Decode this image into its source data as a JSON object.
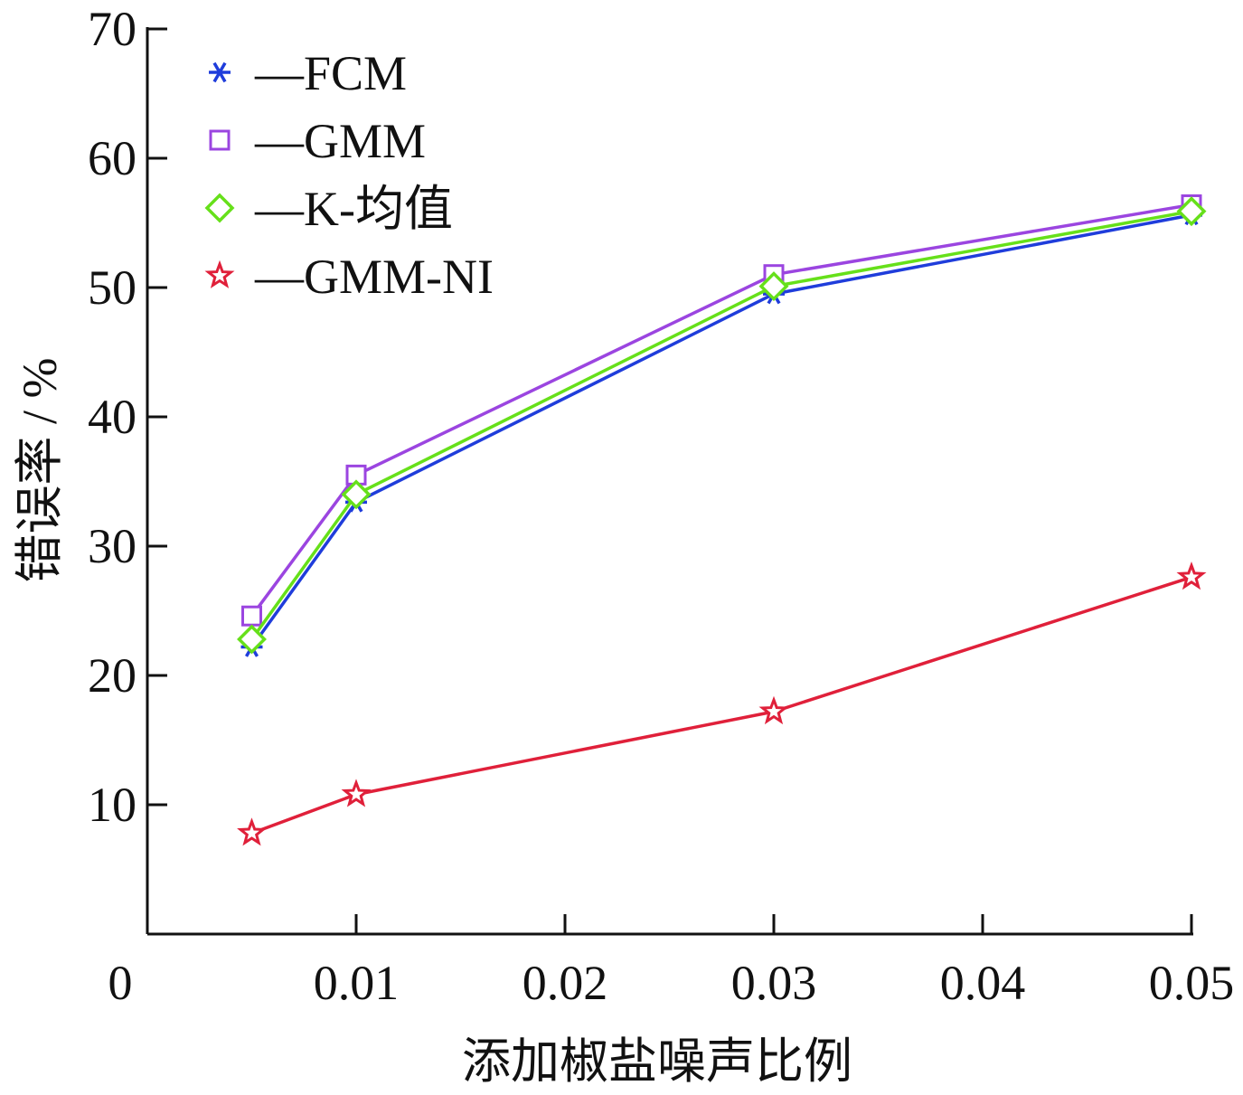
{
  "chart_data": {
    "type": "line",
    "xlabel": "添加椒盐噪声比例",
    "ylabel": "错误率 / %",
    "xlim": [
      0,
      0.05
    ],
    "ylim": [
      0,
      70
    ],
    "xticks": [
      0,
      0.01,
      0.02,
      0.03,
      0.04,
      0.05
    ],
    "xtick_labels": [
      "0",
      "0.01",
      "0.02",
      "0.03",
      "0.04",
      "0.05"
    ],
    "yticks": [
      10,
      20,
      30,
      40,
      50,
      60,
      70
    ],
    "ytick_labels": [
      "10",
      "20",
      "30",
      "40",
      "50",
      "60",
      "70"
    ],
    "grid": false,
    "legend_position": "top-left",
    "x": [
      0.005,
      0.01,
      0.03,
      0.05
    ],
    "series": [
      {
        "name": "FCM",
        "legend_label": "—FCM",
        "marker": "asterisk",
        "color": "#1f3ddb",
        "values": [
          22.2,
          33.4,
          49.5,
          55.6
        ]
      },
      {
        "name": "GMM",
        "legend_label": "—GMM",
        "marker": "square",
        "color": "#9b45e0",
        "values": [
          24.6,
          35.5,
          51.0,
          56.4
        ]
      },
      {
        "name": "K-均值",
        "legend_label": "—K-均值",
        "marker": "diamond",
        "color": "#66e01a",
        "values": [
          22.8,
          34.0,
          50.1,
          55.9
        ]
      },
      {
        "name": "GMM-NI",
        "legend_label": "—GMM-NI",
        "marker": "star",
        "color": "#e0203a",
        "values": [
          7.8,
          10.8,
          17.2,
          27.6
        ]
      }
    ]
  }
}
